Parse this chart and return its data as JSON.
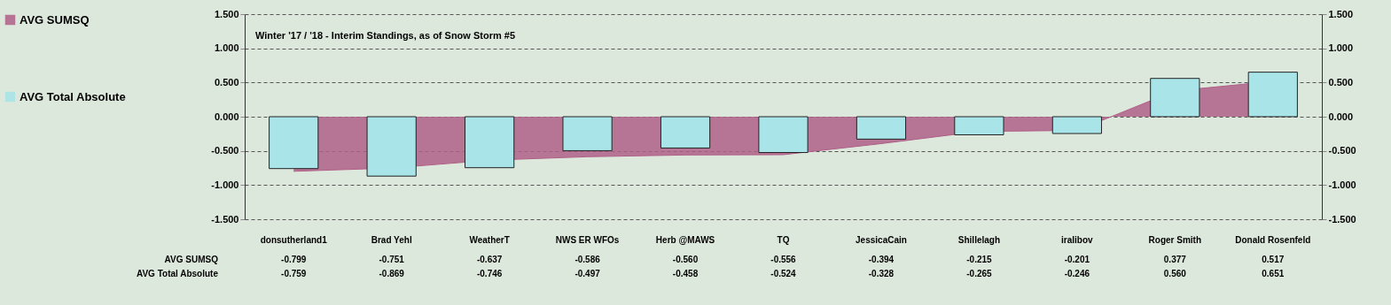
{
  "chart_data": {
    "type": "bar",
    "title": "Winter '17 / '18 - Interim Standings, as of Snow Storm #5",
    "categories": [
      "donsutherland1",
      "Brad Yehl",
      "WeatherT",
      "NWS ER WFOs",
      "Herb @MAWS",
      "TQ",
      "JessicaCain",
      "Shillelagh",
      "iralibov",
      "Roger Smith",
      "Donald Rosenfeld"
    ],
    "series": [
      {
        "name": "AVG SUMSQ",
        "type": "area",
        "axis": "y2",
        "color": "#b06088",
        "values": [
          -0.799,
          -0.751,
          -0.637,
          -0.586,
          -0.56,
          -0.556,
          -0.394,
          -0.215,
          -0.201,
          0.377,
          0.517
        ],
        "value_labels": [
          "-0.799",
          "-0.751",
          "-0.637",
          "-0.586",
          "-0.560",
          "-0.556",
          "-0.394",
          "-0.215",
          "-0.201",
          "0.377",
          "0.517"
        ]
      },
      {
        "name": "AVG Total Absolute",
        "type": "bar",
        "color": "#a8e4e8",
        "values": [
          -0.759,
          -0.869,
          -0.746,
          -0.497,
          -0.458,
          -0.524,
          -0.328,
          -0.265,
          -0.246,
          0.56,
          0.651
        ],
        "value_labels": [
          "-0.759",
          "-0.869",
          "-0.746",
          "-0.497",
          "-0.458",
          "-0.524",
          "-0.328",
          "-0.265",
          "-0.246",
          "0.560",
          "0.651"
        ]
      }
    ],
    "ylim": [
      -1.5,
      1.5
    ],
    "yticks": [
      {
        "value": -1.5,
        "label": "-1.500"
      },
      {
        "value": -1,
        "label": "-1.000"
      },
      {
        "value": -0.5,
        "label": "-0.500"
      },
      {
        "value": 0,
        "label": "0.000"
      },
      {
        "value": 0.5,
        "label": "0.500"
      },
      {
        "value": 1,
        "label": "1.000"
      },
      {
        "value": 1.5,
        "label": "1.500"
      }
    ],
    "y2lim": [
      -1.5,
      1.5
    ],
    "y2ticks": [
      {
        "value": -1.5,
        "label": "-1.500"
      },
      {
        "value": -1,
        "label": "-1.000"
      },
      {
        "value": -0.5,
        "label": "-0.500"
      },
      {
        "value": 0,
        "label": "0.000"
      },
      {
        "value": 0.5,
        "label": "0.500"
      },
      {
        "value": 1,
        "label": "1.000"
      },
      {
        "value": 1.5,
        "label": "1.500"
      }
    ],
    "grid": "y",
    "line_style": "dashed",
    "legend": "left"
  }
}
